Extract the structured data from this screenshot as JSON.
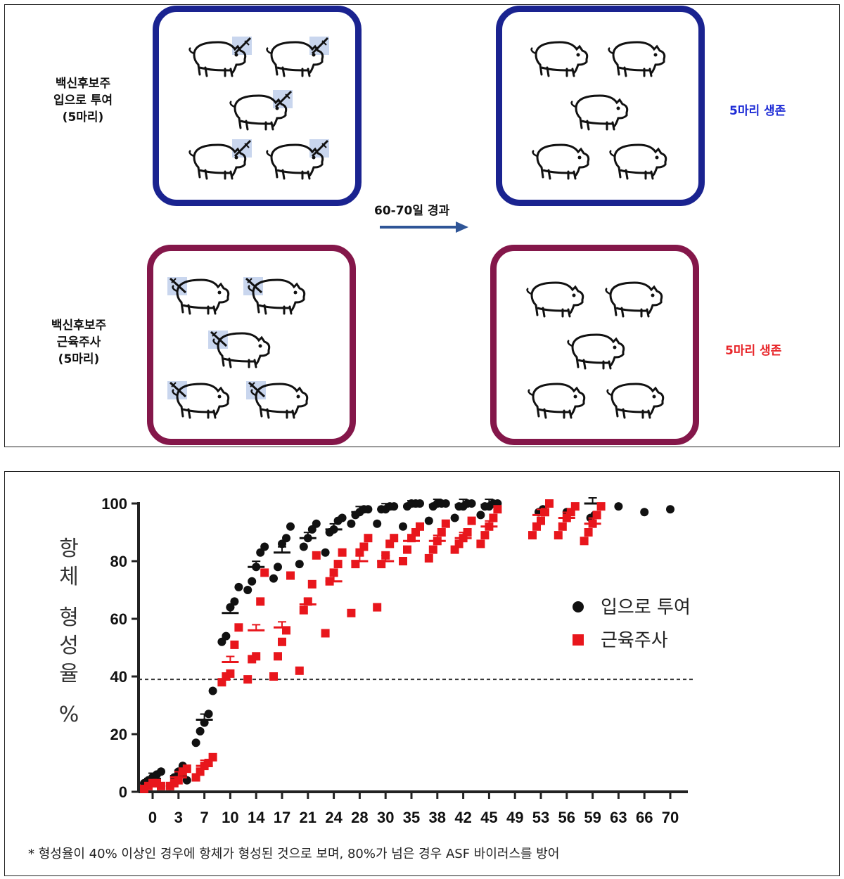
{
  "diagram": {
    "groups": [
      {
        "label": "백신후보주\n입으로 투여\n(5마리)",
        "color": "#1a2390",
        "result": "5마리 생존",
        "result_color": "#1d2bd6"
      },
      {
        "label": "백신후보주\n근육주사\n(5마리)",
        "color": "#84174a",
        "result": "5마리 생존",
        "result_color": "#e8262a"
      }
    ],
    "arrow_label": "60-70일 경과"
  },
  "chart_data": {
    "type": "scatter",
    "ylabel": "항체 형성율 %",
    "ylim": [
      0,
      100
    ],
    "yticks": [
      0,
      20,
      40,
      60,
      80,
      100
    ],
    "categories": [
      "0",
      "3",
      "7",
      "10",
      "14",
      "17",
      "21",
      "24",
      "28",
      "30",
      "35",
      "38",
      "42",
      "45",
      "49",
      "53",
      "56",
      "59",
      "63",
      "66",
      "70"
    ],
    "threshold": 39,
    "series": [
      {
        "name": "입으로 투여",
        "color": "#111111",
        "marker": "circle",
        "points": {
          "0": [
            3,
            4,
            5,
            6,
            7
          ],
          "3": [
            2,
            5,
            7,
            9,
            4
          ],
          "7": [
            17,
            21,
            24,
            27,
            35
          ],
          "10": [
            52,
            54,
            64,
            66,
            71
          ],
          "14": [
            70,
            73,
            78,
            83,
            85
          ],
          "17": [
            74,
            78,
            86,
            88,
            92
          ],
          "21": [
            79,
            85,
            88,
            91,
            93
          ],
          "24": [
            83,
            90,
            91,
            94,
            95
          ],
          "28": [
            93,
            96,
            97,
            98,
            98
          ],
          "30": [
            93,
            98,
            98,
            99,
            99
          ],
          "35": [
            92,
            99,
            100,
            100,
            100
          ],
          "38": [
            94,
            99,
            100,
            100,
            100
          ],
          "42": [
            95,
            99,
            99,
            100,
            100
          ],
          "45": [
            96,
            99,
            99,
            100,
            100
          ],
          "53": [
            97,
            98
          ],
          "56": [
            97
          ],
          "59": [
            95,
            96
          ],
          "63": [
            99
          ],
          "66": [
            97
          ],
          "70": [
            98
          ]
        },
        "means": {
          "0": 4.5,
          "3": 5.5,
          "7": 25,
          "10": 62,
          "14": 78,
          "17": 83,
          "21": 88,
          "24": 91,
          "28": 97,
          "30": 98,
          "35": 99,
          "38": 99.5,
          "42": 99.5,
          "45": 99.5,
          "59": 100
        }
      },
      {
        "name": "근육주사",
        "color": "#e8161c",
        "marker": "square",
        "points": {
          "0": [
            1,
            2,
            3,
            3,
            2
          ],
          "3": [
            2,
            3,
            4,
            7,
            8
          ],
          "7": [
            5,
            7,
            9,
            10,
            12
          ],
          "10": [
            38,
            40,
            41,
            51,
            57
          ],
          "14": [
            39,
            46,
            47,
            66,
            76
          ],
          "17": [
            40,
            47,
            52,
            56,
            75
          ],
          "21": [
            42,
            63,
            66,
            72,
            82
          ],
          "24": [
            55,
            73,
            76,
            79,
            83
          ],
          "28": [
            62,
            79,
            83,
            85,
            88
          ],
          "30": [
            64,
            79,
            82,
            86,
            88
          ],
          "35": [
            80,
            84,
            88,
            90,
            92
          ],
          "38": [
            81,
            84,
            87,
            90,
            93
          ],
          "42": [
            84,
            86,
            88,
            90,
            94
          ],
          "45": [
            86,
            89,
            92,
            95,
            98
          ],
          "53": [
            89,
            92,
            94,
            97,
            100
          ],
          "56": [
            89,
            92,
            95,
            97,
            99
          ],
          "59": [
            87,
            90,
            93,
            96,
            99
          ]
        },
        "means": {
          "0": 2,
          "3": 5,
          "7": 9,
          "10": 45,
          "14": 56,
          "17": 57,
          "21": 65,
          "24": 73,
          "28": 80,
          "30": 80,
          "35": 87,
          "38": 87,
          "42": 88,
          "45": 92,
          "53": 96,
          "56": 95,
          "59": 93
        }
      }
    ],
    "legend_position": "right",
    "footnote": "* 형성율이 40% 이상인 경우에 항체가 형성된 것으로 보며, 80%가 넘은 경우 ASF 바이러스를 방어"
  }
}
